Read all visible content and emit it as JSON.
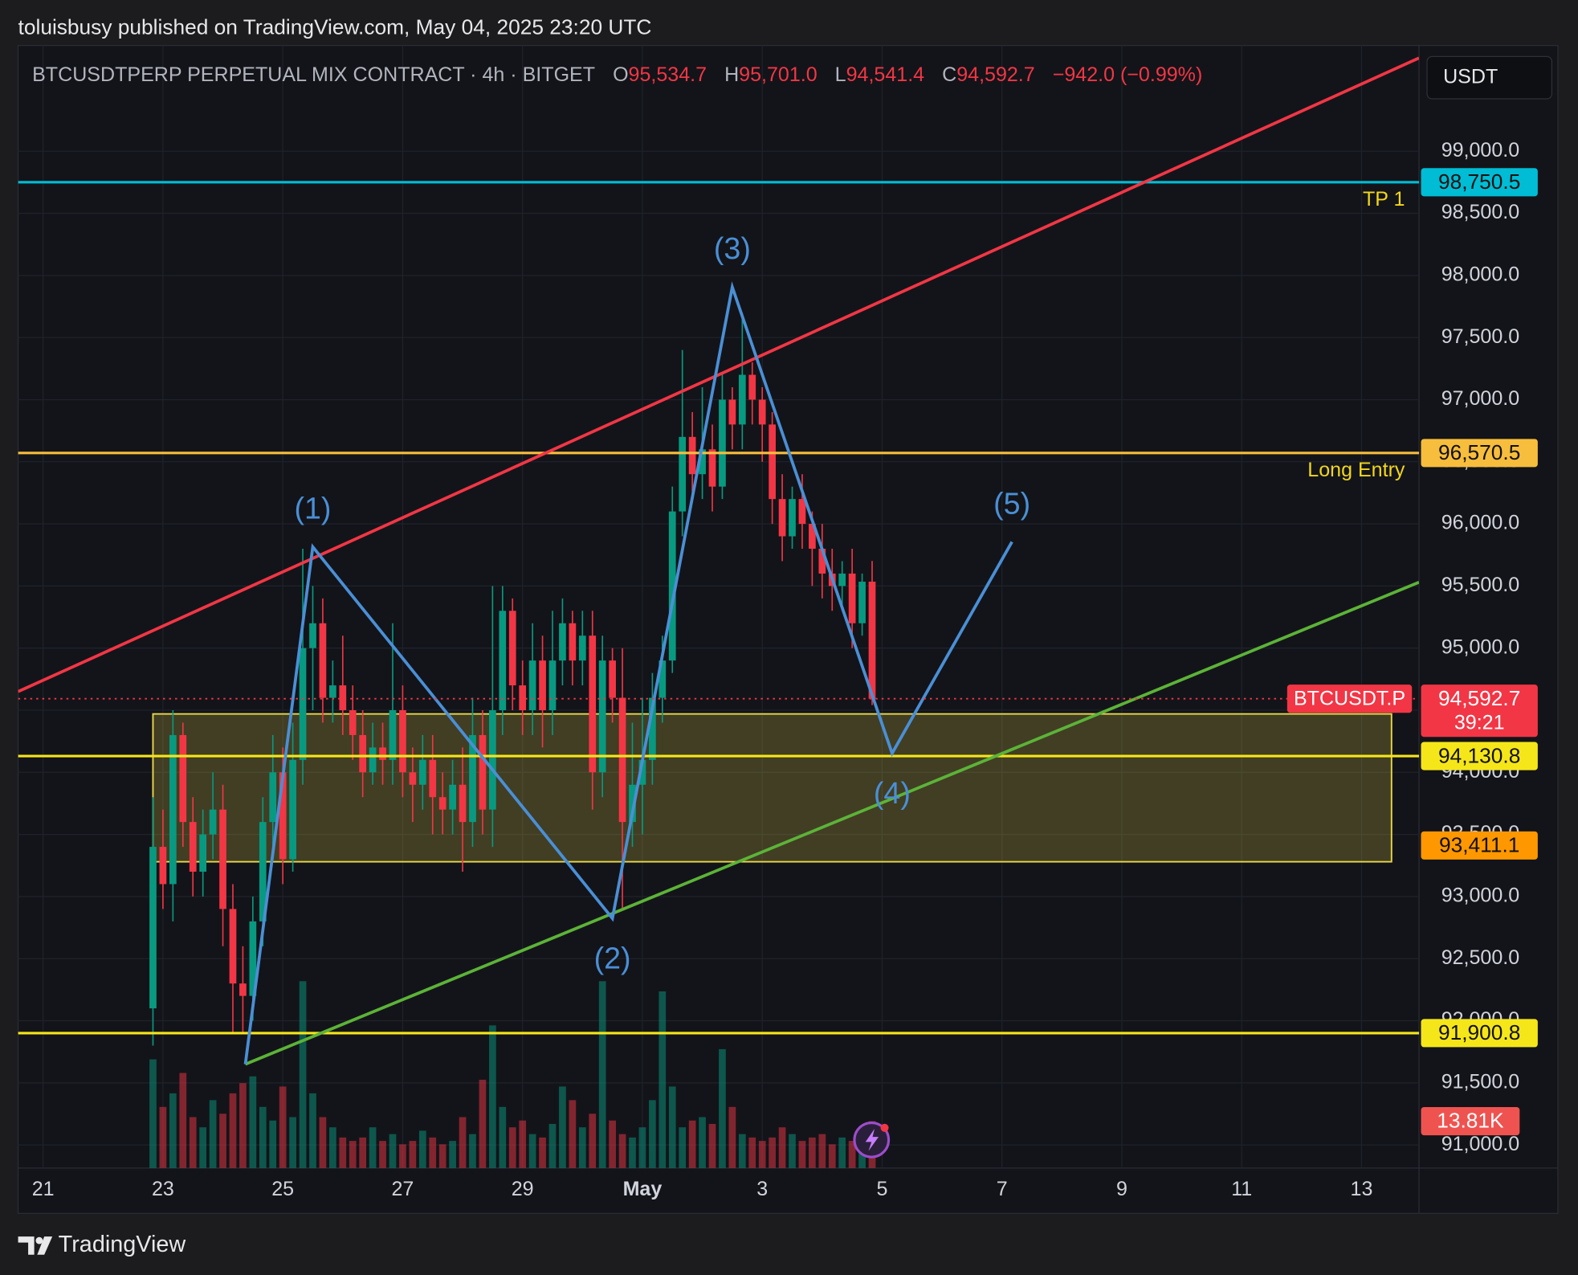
{
  "publisher": "toluisbusy published on TradingView.com, May 04, 2025 23:20 UTC",
  "brand": "TradingView",
  "chart_data": {
    "type": "candlestick",
    "legend": {
      "symbol": "BTCUSDTPERP PERPETUAL MIX CONTRACT · 4h · BITGET",
      "ohlc": [
        {
          "label": "O",
          "value": "95,534.7"
        },
        {
          "label": "H",
          "value": "95,701.0"
        },
        {
          "label": "L",
          "value": "94,541.4"
        },
        {
          "label": "C",
          "value": "94,592.7"
        }
      ],
      "change": "−942.0 (−0.99%)"
    },
    "currency": "USDT",
    "up_color": "#089981",
    "down_color": "#f23645",
    "x": [
      "2025-04-22T20:00Z",
      "2025-04-23T00:00Z",
      "2025-04-23T04:00Z",
      "2025-04-23T08:00Z",
      "2025-04-23T12:00Z",
      "2025-04-23T16:00Z",
      "2025-04-23T20:00Z",
      "2025-04-24T00:00Z",
      "2025-04-24T04:00Z",
      "2025-04-24T08:00Z",
      "2025-04-24T12:00Z",
      "2025-04-24T16:00Z",
      "2025-04-24T20:00Z",
      "2025-04-25T00:00Z",
      "2025-04-25T04:00Z",
      "2025-04-25T08:00Z",
      "2025-04-25T12:00Z",
      "2025-04-25T16:00Z",
      "2025-04-25T20:00Z",
      "2025-04-26T00:00Z",
      "2025-04-26T04:00Z",
      "2025-04-26T08:00Z",
      "2025-04-26T12:00Z",
      "2025-04-26T16:00Z",
      "2025-04-26T20:00Z",
      "2025-04-27T00:00Z",
      "2025-04-27T04:00Z",
      "2025-04-27T08:00Z",
      "2025-04-27T12:00Z",
      "2025-04-27T16:00Z",
      "2025-04-27T20:00Z",
      "2025-04-28T00:00Z",
      "2025-04-28T04:00Z",
      "2025-04-28T08:00Z",
      "2025-04-28T12:00Z",
      "2025-04-28T16:00Z",
      "2025-04-28T20:00Z",
      "2025-04-29T00:00Z",
      "2025-04-29T04:00Z",
      "2025-04-29T08:00Z",
      "2025-04-29T12:00Z",
      "2025-04-29T16:00Z",
      "2025-04-29T20:00Z",
      "2025-04-30T00:00Z",
      "2025-04-30T04:00Z",
      "2025-04-30T08:00Z",
      "2025-04-30T12:00Z",
      "2025-04-30T16:00Z",
      "2025-04-30T20:00Z",
      "2025-05-01T00:00Z",
      "2025-05-01T04:00Z",
      "2025-05-01T08:00Z",
      "2025-05-01T12:00Z",
      "2025-05-01T16:00Z",
      "2025-05-01T20:00Z",
      "2025-05-02T00:00Z",
      "2025-05-02T04:00Z",
      "2025-05-02T08:00Z",
      "2025-05-02T12:00Z",
      "2025-05-02T16:00Z",
      "2025-05-02T20:00Z",
      "2025-05-03T00:00Z",
      "2025-05-03T04:00Z",
      "2025-05-03T08:00Z",
      "2025-05-03T12:00Z",
      "2025-05-03T16:00Z",
      "2025-05-03T20:00Z",
      "2025-05-04T00:00Z",
      "2025-05-04T04:00Z",
      "2025-05-04T08:00Z",
      "2025-05-04T12:00Z",
      "2025-05-04T16:00Z",
      "2025-05-04T20:00Z"
    ],
    "open": [
      92100,
      93400,
      93100,
      94300,
      93600,
      93200,
      93500,
      93700,
      92900,
      92300,
      92200,
      92800,
      93600,
      94000,
      93300,
      94100,
      95000,
      95200,
      94600,
      94700,
      94500,
      94300,
      94000,
      94200,
      94100,
      94500,
      94000,
      93900,
      94100,
      93800,
      93700,
      93900,
      93600,
      94300,
      93700,
      94500,
      95300,
      94700,
      94500,
      94900,
      94500,
      94900,
      95200,
      94900,
      95100,
      94000,
      94900,
      94600,
      93600,
      93900,
      94100,
      94600,
      94900,
      96100,
      96700,
      96400,
      96600,
      96300,
      97000,
      96800,
      97200,
      97000,
      96800,
      96200,
      95900,
      96200,
      96000,
      95800,
      95600,
      95500,
      95600,
      95200,
      95534.7
    ],
    "high": [
      93800,
      93700,
      94500,
      94400,
      93800,
      93700,
      94000,
      93900,
      93100,
      92600,
      93000,
      93800,
      94300,
      94200,
      94400,
      95800,
      95500,
      95400,
      94900,
      95100,
      94700,
      94500,
      94400,
      94400,
      95200,
      94700,
      94200,
      94300,
      94300,
      94000,
      94100,
      94200,
      94600,
      94500,
      95500,
      95500,
      95400,
      94900,
      95200,
      95100,
      95300,
      95400,
      95300,
      95300,
      95300,
      95100,
      95000,
      95000,
      94400,
      94600,
      94800,
      95100,
      96300,
      97400,
      96900,
      97100,
      96800,
      97200,
      97100,
      97700,
      97300,
      97100,
      96900,
      96400,
      96300,
      96400,
      96100,
      96000,
      95800,
      95700,
      95800,
      95600,
      95701
    ],
    "low": [
      91800,
      92900,
      92800,
      93400,
      93000,
      93000,
      93300,
      92600,
      91900,
      91900,
      92000,
      92600,
      93400,
      93100,
      93200,
      93900,
      94500,
      94400,
      94400,
      94300,
      94100,
      93800,
      93900,
      93900,
      93900,
      93800,
      93600,
      93700,
      93500,
      93500,
      93500,
      93200,
      93400,
      93500,
      93400,
      94300,
      94500,
      94300,
      94300,
      94200,
      94300,
      94700,
      94700,
      94700,
      93700,
      93800,
      94400,
      92900,
      93400,
      93500,
      93900,
      94400,
      94800,
      95900,
      96200,
      96200,
      96100,
      96200,
      96600,
      96600,
      96800,
      96500,
      96000,
      95700,
      95800,
      95800,
      95500,
      95400,
      95300,
      95300,
      95000,
      95100,
      94541.4
    ],
    "close": [
      93400,
      93100,
      94300,
      93600,
      93200,
      93500,
      93700,
      92900,
      92300,
      92200,
      92800,
      93600,
      94000,
      93300,
      94100,
      95000,
      95200,
      94600,
      94700,
      94500,
      94300,
      94000,
      94200,
      94100,
      94500,
      94000,
      93900,
      94100,
      93800,
      93700,
      93900,
      93600,
      94300,
      93700,
      94500,
      95300,
      94700,
      94500,
      94900,
      94500,
      94900,
      95200,
      94900,
      95100,
      94000,
      94900,
      94600,
      93600,
      93900,
      94100,
      94600,
      94900,
      96100,
      96700,
      96400,
      96600,
      96300,
      97000,
      96800,
      97200,
      97000,
      96800,
      96200,
      95900,
      96200,
      96000,
      95800,
      95600,
      95500,
      95600,
      95200,
      95534.7,
      94592.7
    ],
    "volume": {
      "values": [
        32000,
        18000,
        22000,
        28000,
        15000,
        12000,
        20000,
        16000,
        22000,
        25000,
        27000,
        18000,
        14000,
        24000,
        15000,
        55000,
        22000,
        15000,
        12000,
        9000,
        8000,
        9000,
        12000,
        8000,
        10000,
        7000,
        8000,
        11000,
        9000,
        7000,
        8000,
        15000,
        10000,
        26000,
        42000,
        18000,
        12000,
        14000,
        10000,
        9000,
        13000,
        24000,
        20000,
        12000,
        16000,
        55000,
        14000,
        10000,
        9000,
        12000,
        20000,
        52000,
        24000,
        12000,
        14000,
        15000,
        13000,
        35000,
        18000,
        10000,
        9000,
        8000,
        9000,
        12000,
        10000,
        8000,
        9000,
        10000,
        7000,
        9000,
        8000,
        7000,
        13810
      ],
      "ylim": [
        0,
        80000
      ],
      "badge": {
        "value": 13810,
        "label": "13.81K"
      },
      "badge_color": "#ef5350"
    },
    "xlim": [
      "2025-04-20T14:00Z",
      "2025-05-13T23:00Z"
    ],
    "ylim": [
      90814,
      99851
    ],
    "xticks": [
      {
        "value": "2025-04-21T00:00Z",
        "label": "21"
      },
      {
        "value": "2025-04-23T00:00Z",
        "label": "23"
      },
      {
        "value": "2025-04-25T00:00Z",
        "label": "25"
      },
      {
        "value": "2025-04-27T00:00Z",
        "label": "27"
      },
      {
        "value": "2025-04-29T00:00Z",
        "label": "29"
      },
      {
        "value": "2025-05-01T00:00Z",
        "label": "May"
      },
      {
        "value": "2025-05-03T00:00Z",
        "label": "3"
      },
      {
        "value": "2025-05-05T00:00Z",
        "label": "5"
      },
      {
        "value": "2025-05-07T00:00Z",
        "label": "7"
      },
      {
        "value": "2025-05-09T00:00Z",
        "label": "9"
      },
      {
        "value": "2025-05-11T00:00Z",
        "label": "11"
      },
      {
        "value": "2025-05-13T00:00Z",
        "label": "13"
      }
    ],
    "yticks": [
      {
        "value": 91000,
        "label": "91,000.0"
      },
      {
        "value": 91500,
        "label": "91,500.0"
      },
      {
        "value": 92000,
        "label": "92,000.0"
      },
      {
        "value": 92500,
        "label": "92,500.0"
      },
      {
        "value": 93000,
        "label": "93,000.0"
      },
      {
        "value": 93500,
        "label": "93,500.0"
      },
      {
        "value": 94000,
        "label": "94,000.0"
      },
      {
        "value": 94500,
        "label": "94,500.0"
      },
      {
        "value": 95000,
        "label": "95,000.0"
      },
      {
        "value": 95500,
        "label": "95,500.0"
      },
      {
        "value": 96000,
        "label": "96,000.0"
      },
      {
        "value": 96500,
        "label": "96,500.0"
      },
      {
        "value": 97000,
        "label": "97,000.0"
      },
      {
        "value": 97500,
        "label": "97,500.0"
      },
      {
        "value": 98000,
        "label": "98,000.0"
      },
      {
        "value": 98500,
        "label": "98,500.0"
      },
      {
        "value": 99000,
        "label": "99,000.0"
      }
    ],
    "grid": true,
    "zone": {
      "x": [
        "2025-04-22T20:00Z",
        "2025-05-13T12:00Z"
      ],
      "ylim": [
        93280,
        94470
      ],
      "color": "#e8d84a"
    },
    "levels": [
      {
        "value": 98750.5,
        "value_label": "98,750.5",
        "label": "TP 1",
        "color": "#00bcd4",
        "line": true
      },
      {
        "value": 96570.5,
        "value_label": "96,570.5",
        "label": "Long Entry",
        "color": "#f7bd3c",
        "line": true
      },
      {
        "value": 94130.8,
        "value_label": "94,130.8",
        "color": "#f5e61a",
        "line": true
      },
      {
        "value": 93411.1,
        "value_label": "93,411.1",
        "color": "#ff9800",
        "line": false
      },
      {
        "value": 91900.8,
        "value_label": "91,900.8",
        "color": "#f5e61a",
        "line": true
      }
    ],
    "trendlines": [
      {
        "color": "#f23645",
        "x": [
          "2025-04-20T14:00Z",
          "2025-05-13T23:00Z"
        ],
        "y": [
          94650,
          99750
        ]
      },
      {
        "color": "#5cb338",
        "x": [
          "2025-04-24T09:00Z",
          "2025-05-13T23:00Z"
        ],
        "y": [
          91650,
          95530
        ]
      }
    ],
    "waves": {
      "color": "#4a8fd6",
      "points": [
        {
          "x": "2025-04-24T09:00Z",
          "y": 91650,
          "label": null
        },
        {
          "x": "2025-04-25T12:00Z",
          "y": 95815,
          "label": "(1)"
        },
        {
          "x": "2025-04-30T12:00Z",
          "y": 92824,
          "label": "(2)"
        },
        {
          "x": "2025-05-02T12:00Z",
          "y": 97906,
          "label": "(3)"
        },
        {
          "x": "2025-05-05T04:00Z",
          "y": 94153,
          "label": "(4)"
        },
        {
          "x": "2025-05-07T04:00Z",
          "y": 95855,
          "label": "(5)"
        }
      ]
    },
    "last": {
      "value": 94592.7,
      "value_label": "94,592.7",
      "name": "BTCUSDT.P",
      "countdown": "39:21",
      "color": "#f23645"
    }
  }
}
